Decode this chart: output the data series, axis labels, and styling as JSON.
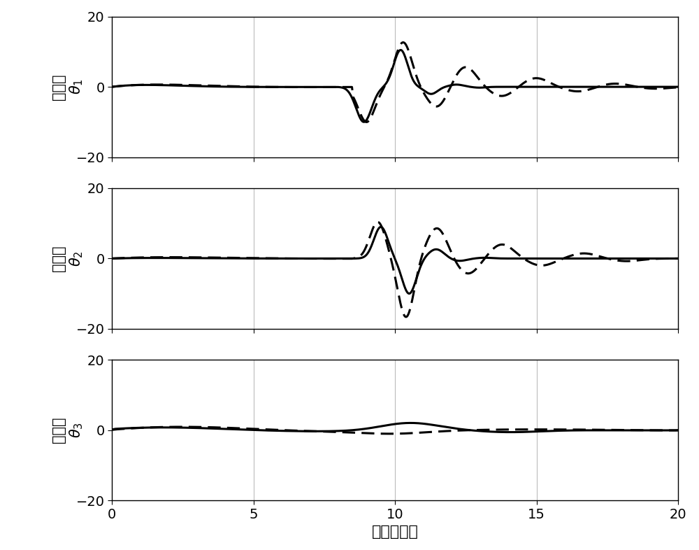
{
  "xlim": [
    0,
    20
  ],
  "ylim": [
    -20,
    20
  ],
  "yticks": [
    -20,
    0,
    20
  ],
  "xticks": [
    0,
    5,
    10,
    15,
    20
  ],
  "xlabel": "时间（秒）",
  "ylabel1_top": "（度）",
  "ylabel1_bot": "$\\theta_1$",
  "ylabel2_top": "（度）",
  "ylabel2_bot": "$\\theta_2$",
  "ylabel3_top": "（度）",
  "ylabel3_bot": "$\\theta_3$",
  "figsize": [
    10.0,
    7.86
  ],
  "dpi": 100,
  "background_color": "#ffffff",
  "line_color": "#000000",
  "linewidth_solid": 2.2,
  "linewidth_dashed": 2.2,
  "grid_color": "#bbbbbb",
  "tick_fontsize": 14,
  "label_fontsize": 15
}
